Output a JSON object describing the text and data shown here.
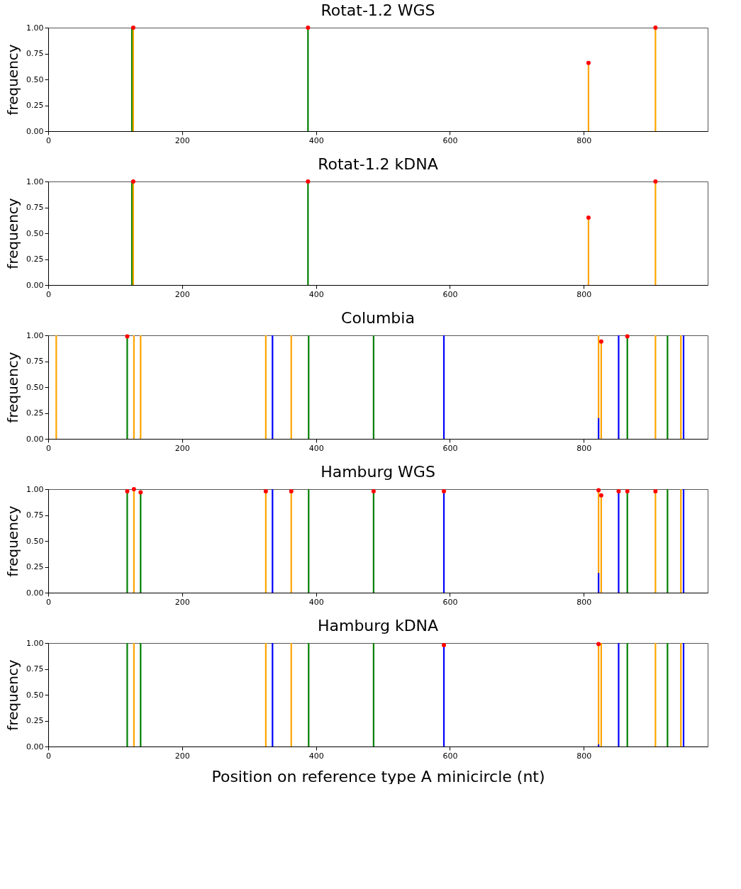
{
  "chart_data": [
    {
      "type": "bar",
      "title": "Rotat-1.2 WGS",
      "ylabel": "frequency",
      "xlim": [
        0,
        985
      ],
      "xticks": [
        0,
        200,
        400,
        600,
        800
      ],
      "ylim": [
        0,
        1
      ],
      "yticks": [
        {
          "value": 0,
          "label": "0.00"
        },
        {
          "value": 0.25,
          "label": "0.25"
        },
        {
          "value": 0.5,
          "label": "0.50"
        },
        {
          "value": 0.75,
          "label": "0.75"
        },
        {
          "value": 1,
          "label": "1.00"
        }
      ],
      "grid": false,
      "series": [
        {
          "color": "#008000",
          "x": [
            125,
            388
          ],
          "values": [
            1,
            1
          ]
        },
        {
          "color": "#ffa500",
          "x": [
            127,
            807,
            907
          ],
          "values": [
            1,
            0.66,
            1
          ]
        },
        {
          "type": "scatter",
          "marker": "circle",
          "color": "#ff0000",
          "x": [
            127,
            388,
            807,
            907
          ],
          "values": [
            1,
            1,
            0.66,
            1
          ]
        }
      ]
    },
    {
      "type": "bar",
      "title": "Rotat-1.2 kDNA",
      "ylabel": "frequency",
      "xlim": [
        0,
        985
      ],
      "xticks": [
        0,
        200,
        400,
        600,
        800
      ],
      "ylim": [
        0,
        1
      ],
      "yticks": [
        {
          "value": 0,
          "label": "0.00"
        },
        {
          "value": 0.25,
          "label": "0.25"
        },
        {
          "value": 0.5,
          "label": "0.50"
        },
        {
          "value": 0.75,
          "label": "0.75"
        },
        {
          "value": 1,
          "label": "1.00"
        }
      ],
      "grid": false,
      "series": [
        {
          "color": "#008000",
          "x": [
            125,
            388
          ],
          "values": [
            1,
            1
          ]
        },
        {
          "color": "#ffa500",
          "x": [
            127,
            807,
            907
          ],
          "values": [
            1,
            0.65,
            1
          ]
        },
        {
          "type": "scatter",
          "marker": "circle",
          "color": "#ff0000",
          "x": [
            127,
            388,
            807,
            907
          ],
          "values": [
            1,
            1,
            0.65,
            1
          ]
        }
      ]
    },
    {
      "type": "bar",
      "title": "Columbia",
      "ylabel": "frequency",
      "xlim": [
        0,
        985
      ],
      "xticks": [
        0,
        200,
        400,
        600,
        800
      ],
      "ylim": [
        0,
        1
      ],
      "yticks": [
        {
          "value": 0,
          "label": "0.00"
        },
        {
          "value": 0.25,
          "label": "0.25"
        },
        {
          "value": 0.5,
          "label": "0.50"
        },
        {
          "value": 0.75,
          "label": "0.75"
        },
        {
          "value": 1,
          "label": "1.00"
        }
      ],
      "grid": false,
      "series": [
        {
          "color": "#ffa500",
          "x": [
            12,
            128,
            138,
            325,
            363,
            822,
            826,
            907,
            945
          ],
          "values": [
            1,
            1,
            1,
            1,
            1,
            1,
            0.94,
            1,
            1
          ]
        },
        {
          "color": "#008000",
          "x": [
            118,
            389,
            486,
            865,
            925
          ],
          "values": [
            0.99,
            1,
            1,
            1,
            1
          ]
        },
        {
          "color": "#0000ff",
          "x": [
            335,
            591,
            822,
            852,
            949
          ],
          "values": [
            1,
            1,
            0.2,
            1,
            1
          ]
        },
        {
          "type": "scatter",
          "marker": "circle",
          "color": "#ff0000",
          "x": [
            118,
            826,
            865
          ],
          "values": [
            0.99,
            0.94,
            0.99
          ]
        }
      ]
    },
    {
      "type": "bar",
      "title": "Hamburg WGS",
      "ylabel": "frequency",
      "xlim": [
        0,
        985
      ],
      "xticks": [
        0,
        200,
        400,
        600,
        800
      ],
      "ylim": [
        0,
        1
      ],
      "yticks": [
        {
          "value": 0,
          "label": "0.00"
        },
        {
          "value": 0.25,
          "label": "0.25"
        },
        {
          "value": 0.5,
          "label": "0.50"
        },
        {
          "value": 0.75,
          "label": "0.75"
        },
        {
          "value": 1,
          "label": "1.00"
        }
      ],
      "grid": false,
      "series": [
        {
          "color": "#ffa500",
          "x": [
            128,
            325,
            363,
            822,
            826,
            907,
            945
          ],
          "values": [
            1,
            0.98,
            0.98,
            0.99,
            0.94,
            0.98,
            1
          ]
        },
        {
          "color": "#008000",
          "x": [
            118,
            138,
            389,
            486,
            865,
            925
          ],
          "values": [
            0.98,
            0.97,
            1,
            0.98,
            0.98,
            1
          ]
        },
        {
          "color": "#0000ff",
          "x": [
            335,
            591,
            822,
            852,
            949
          ],
          "values": [
            1,
            0.98,
            0.19,
            0.98,
            1
          ]
        },
        {
          "type": "scatter",
          "marker": "circle",
          "color": "#ff0000",
          "x": [
            118,
            128,
            138,
            325,
            363,
            486,
            591,
            822,
            826,
            852,
            865,
            907
          ],
          "values": [
            0.98,
            1,
            0.97,
            0.98,
            0.98,
            0.98,
            0.98,
            0.99,
            0.94,
            0.98,
            0.98,
            0.98
          ]
        }
      ]
    },
    {
      "type": "bar",
      "title": "Hamburg kDNA",
      "xlabel": "Position on reference  type A minicircle (nt)",
      "ylabel": "frequency",
      "xlim": [
        0,
        985
      ],
      "xticks": [
        0,
        200,
        400,
        600,
        800
      ],
      "ylim": [
        0,
        1
      ],
      "yticks": [
        {
          "value": 0,
          "label": "0.00"
        },
        {
          "value": 0.25,
          "label": "0.25"
        },
        {
          "value": 0.5,
          "label": "0.50"
        },
        {
          "value": 0.75,
          "label": "0.75"
        },
        {
          "value": 1,
          "label": "1.00"
        }
      ],
      "grid": false,
      "series": [
        {
          "color": "#ffa500",
          "x": [
            128,
            325,
            363,
            822,
            826,
            907,
            945
          ],
          "values": [
            1,
            1,
            1,
            0.99,
            1,
            1,
            1
          ]
        },
        {
          "color": "#008000",
          "x": [
            118,
            138,
            389,
            486,
            865,
            925
          ],
          "values": [
            1,
            1,
            1,
            1,
            1,
            1
          ]
        },
        {
          "color": "#0000ff",
          "x": [
            335,
            591,
            822,
            852,
            949
          ],
          "values": [
            1,
            0.98,
            0.02,
            1,
            1
          ]
        },
        {
          "type": "scatter",
          "marker": "circle",
          "color": "#ff0000",
          "x": [
            591,
            822
          ],
          "values": [
            0.98,
            0.99
          ]
        }
      ]
    }
  ]
}
